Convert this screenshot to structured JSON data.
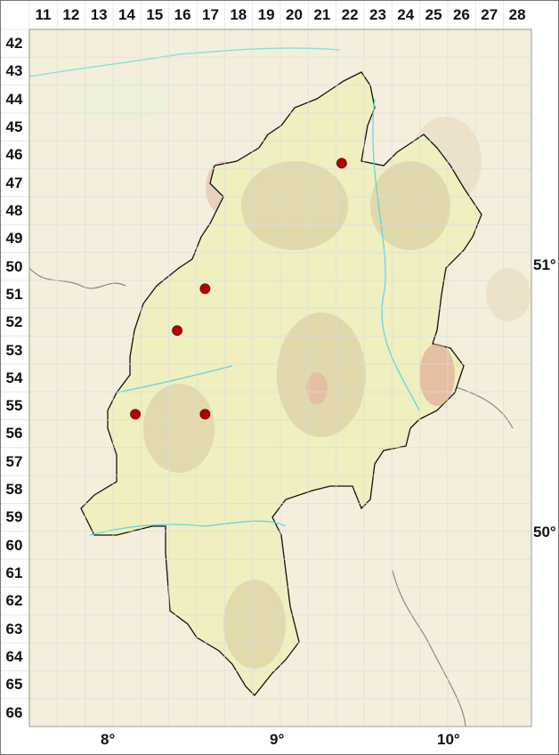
{
  "grid": {
    "columns": [
      "11",
      "12",
      "13",
      "14",
      "15",
      "16",
      "17",
      "18",
      "19",
      "20",
      "21",
      "22",
      "23",
      "24",
      "25",
      "26",
      "27",
      "28"
    ],
    "rows": [
      "42",
      "43",
      "44",
      "45",
      "46",
      "47",
      "48",
      "49",
      "50",
      "51",
      "52",
      "53",
      "54",
      "55",
      "56",
      "57",
      "58",
      "59",
      "60",
      "61",
      "62",
      "63",
      "64",
      "65",
      "66"
    ]
  },
  "longitude_labels": [
    "8°",
    "9°",
    "10°"
  ],
  "latitude_labels": [
    "51°",
    "50°"
  ],
  "colors": {
    "background": "#f3efdc",
    "region_fill": "#efefbf",
    "relief": "#d9c9a0",
    "outline": "#111111",
    "river": "#5fd3e0",
    "border": "#888888",
    "occurrence_dot": "#b00000"
  },
  "occurrences": [
    {
      "column": "22",
      "row": "46"
    },
    {
      "column": "17",
      "row": "51"
    },
    {
      "column": "16",
      "row": "52"
    },
    {
      "column": "14",
      "row": "55"
    },
    {
      "column": "17",
      "row": "55"
    }
  ]
}
